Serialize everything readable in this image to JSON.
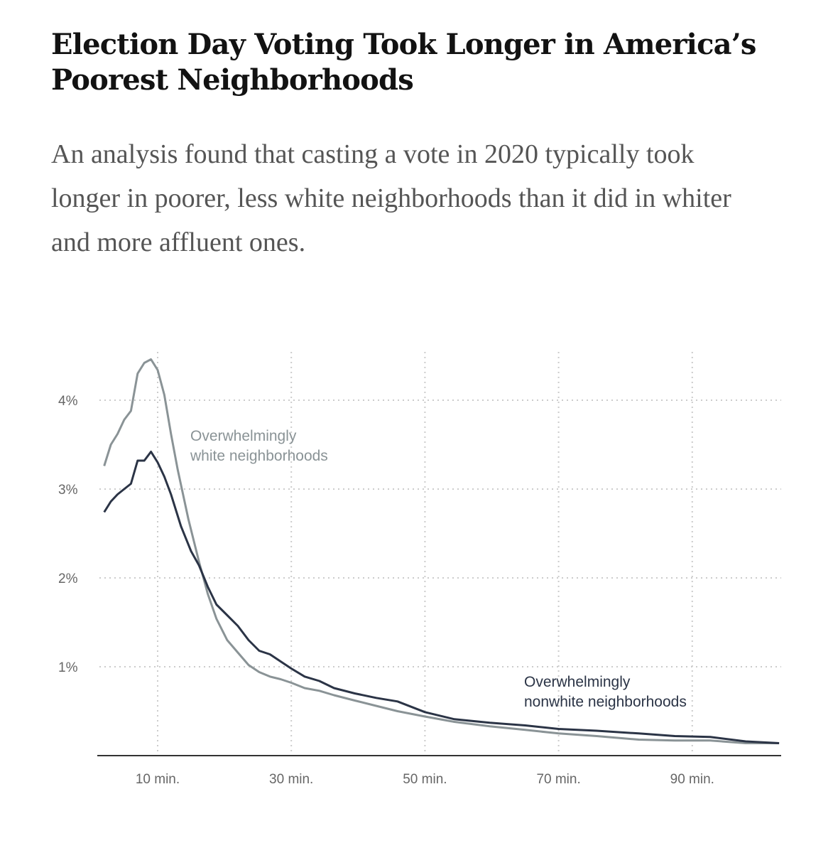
{
  "header": {
    "title": "Election Day Voting Took Longer in America’s Poorest Neighborhoods",
    "subtitle": "An analysis found that casting a vote in 2020 typically took longer in poorer, less white neighborhoods than it did in whiter and more affluent ones."
  },
  "chart_data": {
    "type": "line",
    "title": "",
    "xlabel": "",
    "ylabel": "",
    "xlim": [
      2,
      103
    ],
    "ylim": [
      0,
      4.6
    ],
    "grid": true,
    "x_ticks": [
      10,
      30,
      50,
      70,
      90
    ],
    "x_tick_labels": [
      "10 min.",
      "30 min.",
      "50 min.",
      "70 min.",
      "90 min."
    ],
    "y_ticks": [
      1,
      2,
      3,
      4
    ],
    "y_tick_labels": [
      "1%",
      "2%",
      "3%",
      "4%"
    ],
    "series": [
      {
        "name": "Overwhelmingly white neighborhoods",
        "label_lines": [
          "Overwhelmingly",
          "white neighborhoods"
        ],
        "color": "#8a9396",
        "x": [
          2,
          3,
          4,
          5,
          6,
          7,
          8,
          9,
          10,
          11,
          12,
          13,
          14.6,
          16.2,
          17.5,
          18.8,
          20.4,
          22,
          23.6,
          25.2,
          26.8,
          28.4,
          30,
          32,
          34.2,
          36.4,
          39.5,
          42.7,
          45.9,
          50,
          54.4,
          59.7,
          65,
          70,
          75.7,
          82,
          87.4,
          92.7,
          98,
          103
        ],
        "y": [
          3.26,
          3.5,
          3.62,
          3.78,
          3.88,
          4.3,
          4.42,
          4.46,
          4.34,
          4.06,
          3.62,
          3.22,
          2.66,
          2.18,
          1.82,
          1.54,
          1.3,
          1.16,
          1.02,
          0.94,
          0.89,
          0.86,
          0.82,
          0.76,
          0.73,
          0.68,
          0.62,
          0.56,
          0.5,
          0.44,
          0.38,
          0.33,
          0.29,
          0.25,
          0.22,
          0.18,
          0.17,
          0.17,
          0.14,
          0.14
        ]
      },
      {
        "name": "Overwhelmingly nonwhite neighborhoods",
        "label_lines": [
          "Overwhelmingly",
          "nonwhite neighborhoods"
        ],
        "color": "#2b3446",
        "x": [
          2,
          3,
          4,
          5,
          6,
          7,
          8,
          9,
          10,
          11,
          12,
          13.5,
          15,
          16.2,
          17.5,
          18.8,
          20.4,
          22,
          23.6,
          25.2,
          26.8,
          28.4,
          30,
          32,
          34.2,
          36.4,
          39.5,
          42.7,
          45.9,
          50,
          54.4,
          59.7,
          65,
          70,
          75.7,
          82,
          87.4,
          92.7,
          98,
          103
        ],
        "y": [
          2.74,
          2.86,
          2.94,
          3.0,
          3.06,
          3.32,
          3.32,
          3.42,
          3.3,
          3.14,
          2.94,
          2.58,
          2.3,
          2.14,
          1.9,
          1.7,
          1.58,
          1.46,
          1.3,
          1.18,
          1.14,
          1.06,
          0.98,
          0.89,
          0.84,
          0.76,
          0.7,
          0.65,
          0.61,
          0.49,
          0.41,
          0.37,
          0.34,
          0.3,
          0.28,
          0.25,
          0.22,
          0.21,
          0.16,
          0.14
        ]
      }
    ]
  }
}
